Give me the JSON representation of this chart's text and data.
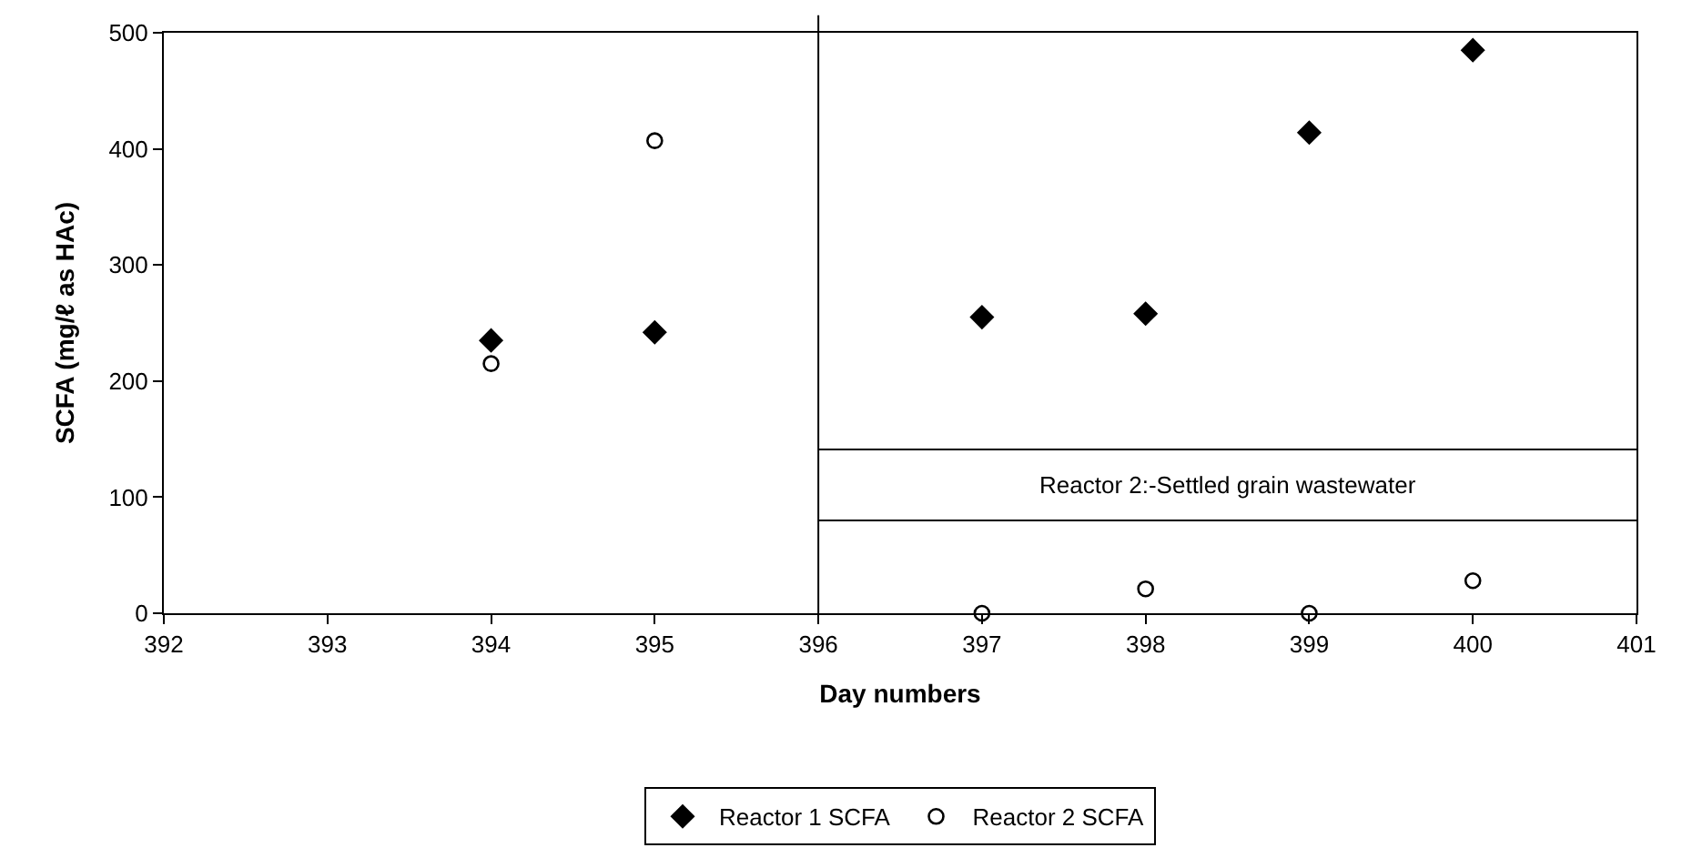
{
  "chart_data": {
    "type": "scatter",
    "xlabel": "Day numbers",
    "ylabel": "SCFA (mg/ℓ as HAc)",
    "x": [
      394,
      395,
      397,
      398,
      399,
      400
    ],
    "series": [
      {
        "name": "Reactor 1 SCFA",
        "color": "#000000",
        "marker": "diamond",
        "values": [
          235,
          242,
          255,
          258,
          414,
          485
        ]
      },
      {
        "name": "Reactor 2 SCFA",
        "color": "#000000",
        "marker": "circle-open",
        "values": [
          215,
          407,
          0,
          21,
          0,
          28
        ]
      }
    ],
    "xlim": [
      392,
      401
    ],
    "xticks": [
      392,
      393,
      394,
      395,
      396,
      397,
      398,
      399,
      400,
      401
    ],
    "ylim": [
      0,
      500
    ],
    "yticks": [
      0,
      100,
      200,
      300,
      400,
      500
    ],
    "ref_lines": [
      {
        "axis": "x",
        "value": 396,
        "color": "#000000"
      },
      {
        "axis": "y",
        "value": 141,
        "color": "#000000"
      },
      {
        "axis": "y",
        "value": 80,
        "color": "#000000"
      }
    ],
    "annotations": [
      "Reactor 2:-Settled grain wastewater"
    ],
    "legend": "bottom"
  }
}
